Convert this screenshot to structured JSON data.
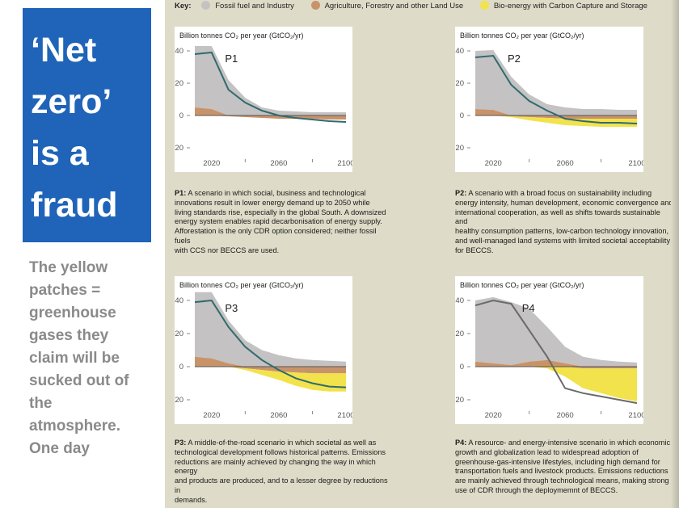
{
  "title": {
    "lines": [
      "‘Net",
      "zero’",
      "is a",
      "fraud"
    ]
  },
  "caption": {
    "lines": [
      "The yellow",
      "patches =",
      "greenhouse",
      "gases they",
      "claim will be",
      "sucked out of",
      "the",
      "atmosphere.",
      "One day"
    ]
  },
  "key": {
    "label": "Key:",
    "items": [
      {
        "label": "Fossil fuel and Industry",
        "color": "#c4c2c2"
      },
      {
        "label": "Agriculture, Forestry and other Land Use",
        "color": "#c9936a"
      },
      {
        "label": "Bio-energy with Carbon Capture and Storage",
        "color": "#f2e24c"
      }
    ]
  },
  "colors": {
    "fossil": "#c4c2c2",
    "afolu": "#c9936a",
    "beccs": "#f2e24c",
    "net_line": "#2f6b70",
    "p4_line": "#6a6a6a",
    "title_bg": "#1f64b8"
  },
  "chart_data": [
    {
      "type": "area",
      "name": "P1",
      "unit_label": "Billion tonnes CO₂ per year (GtCO₂/yr)",
      "x_ticks": [
        2020,
        2060,
        2100
      ],
      "y_ticks": [
        40,
        20,
        0,
        -20
      ],
      "xlim": [
        2010,
        2100
      ],
      "ylim": [
        -20,
        40
      ],
      "x": [
        2010,
        2020,
        2030,
        2040,
        2050,
        2060,
        2070,
        2080,
        2090,
        2100
      ],
      "fossil": [
        38,
        39,
        22,
        11,
        5,
        3,
        2.5,
        2,
        2,
        2
      ],
      "afolu_pos": [
        5,
        4,
        0,
        0,
        0,
        0,
        0,
        0,
        0,
        0
      ],
      "afolu_neg": [
        0,
        0,
        -0.5,
        -1,
        -1.5,
        -2,
        -2,
        -2,
        -2.5,
        -2.5
      ],
      "beccs": [
        0,
        0,
        0,
        0,
        0,
        0,
        0,
        0,
        0,
        0
      ],
      "net": [
        38,
        39,
        16,
        8,
        3,
        0,
        -1.5,
        -2.5,
        -3.5,
        -4
      ]
    },
    {
      "type": "area",
      "name": "P2",
      "unit_label": "Billion tonnes CO₂ per year (GtCO₂/yr)",
      "x_ticks": [
        2020,
        2060,
        2100
      ],
      "y_ticks": [
        40,
        20,
        0,
        -20
      ],
      "xlim": [
        2010,
        2100
      ],
      "ylim": [
        -20,
        40
      ],
      "x": [
        2010,
        2020,
        2030,
        2040,
        2050,
        2060,
        2070,
        2080,
        2090,
        2100
      ],
      "fossil": [
        36,
        37,
        24,
        13,
        7,
        5,
        4,
        4,
        3.5,
        3.5
      ],
      "afolu_pos": [
        4,
        3.5,
        0,
        0,
        0,
        0,
        0,
        0,
        0,
        0
      ],
      "afolu_neg": [
        0,
        0,
        -0.5,
        -1,
        -1.5,
        -2,
        -2,
        -2,
        -2,
        -2
      ],
      "beccs": [
        0,
        0,
        -0.5,
        -2,
        -3,
        -4,
        -4.5,
        -5,
        -5,
        -5
      ],
      "net": [
        36,
        37,
        19,
        9,
        3,
        -2,
        -3.5,
        -4.5,
        -4.5,
        -5
      ]
    },
    {
      "type": "area",
      "name": "P3",
      "unit_label": "Billion tonnes CO₂ per year (GtCO₂/yr)",
      "x_ticks": [
        2020,
        2060,
        2100
      ],
      "y_ticks": [
        40,
        20,
        0,
        -20
      ],
      "xlim": [
        2010,
        2100
      ],
      "ylim": [
        -20,
        40
      ],
      "x": [
        2010,
        2020,
        2030,
        2040,
        2050,
        2060,
        2070,
        2080,
        2090,
        2100
      ],
      "fossil": [
        39,
        40,
        26,
        16,
        10,
        7,
        5,
        4,
        3.5,
        3
      ],
      "afolu_pos": [
        6,
        5,
        2,
        0,
        0,
        0,
        0,
        0,
        0,
        0
      ],
      "afolu_neg": [
        0,
        0,
        0,
        -1,
        -2,
        -3,
        -3.5,
        -4,
        -4,
        -4
      ],
      "beccs": [
        0,
        0,
        0,
        -1,
        -3,
        -5,
        -8,
        -10,
        -11,
        -11
      ],
      "net": [
        39,
        40,
        24,
        12,
        4,
        -2,
        -7,
        -10,
        -12,
        -12.5
      ]
    },
    {
      "type": "area",
      "name": "P4",
      "unit_label": "Billion tonnes CO₂ per year (GtCO₂/yr)",
      "x_ticks": [
        2020,
        2060,
        2100
      ],
      "y_ticks": [
        40,
        20,
        0,
        -20
      ],
      "xlim": [
        2010,
        2100
      ],
      "ylim": [
        -20,
        40
      ],
      "x": [
        2010,
        2020,
        2030,
        2040,
        2050,
        2060,
        2070,
        2080,
        2090,
        2100
      ],
      "fossil": [
        37,
        40,
        38,
        32,
        20,
        10,
        6,
        4,
        3,
        2.5
      ],
      "afolu_pos": [
        3,
        2,
        1,
        3,
        4,
        2,
        0,
        0,
        0,
        0
      ],
      "afolu_neg": [
        0,
        0,
        0,
        0,
        0,
        0,
        -1,
        -1,
        -1,
        -1
      ],
      "beccs": [
        0,
        0,
        0,
        0,
        -1,
        -6,
        -12,
        -15,
        -18,
        -20
      ],
      "net": [
        37,
        40,
        38,
        22,
        6,
        -13,
        -16,
        -18,
        -20,
        -22
      ]
    }
  ],
  "descriptions": [
    {
      "label": "P1:",
      "lines": [
        "A scenario in which social, business and technological",
        "innovations result in lower energy demand up to 2050 while",
        "living standards rise, especially in the global South. A downsized",
        "energy system enables rapid decarbonisation of energy supply.",
        "Afforestation is the only CDR option considered; neither fossil fuels",
        "with CCS nor BECCS are used."
      ]
    },
    {
      "label": "P2:",
      "lines": [
        "A scenario with a broad focus on sustainability including",
        "energy intensity, human development, economic convergence and",
        "international cooperation, as well as shifts towards sustainable and",
        "healthy consumption patterns, low-carbon technology innovation,",
        "and well-managed land systems with limited societal acceptability",
        "for BECCS."
      ]
    },
    {
      "label": "P3:",
      "lines": [
        "A middle-of-the-road scenario in which societal as well as",
        "technological development follows historical patterns. Emissions",
        "reductions are mainly achieved by changing the way in which energy",
        "and products are produced, and to a lesser degree by reductions in",
        "demands."
      ]
    },
    {
      "label": "P4:",
      "lines": [
        "A resource- and energy-intensive scenario in which economic",
        "growth and globalization lead to widespread adoption of",
        "greenhouse-gas-intensive lifestyles, including high demand for",
        "transportation fuels and livestock products. Emissions reductions",
        "are mainly achieved through technological means, making strong",
        "use of CDR through the deploymemnt of BECCS."
      ]
    }
  ]
}
